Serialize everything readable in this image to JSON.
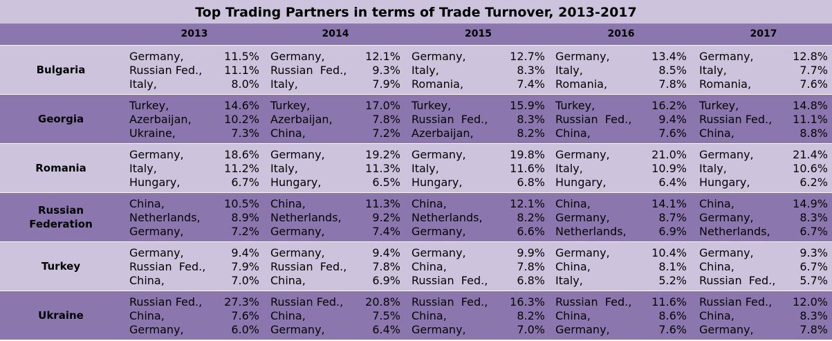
{
  "chart_data": {
    "type": "table",
    "title": "Top Trading Partners in terms of Trade Turnover, 2013-2017",
    "years": [
      "2013",
      "2014",
      "2015",
      "2016",
      "2017"
    ],
    "rows": [
      {
        "country": "Bulgaria",
        "cells": [
          [
            {
              "p": "Germany,",
              "v": "11.5%"
            },
            {
              "p": "Russian Fed.,",
              "v": "11.1%"
            },
            {
              "p": "Italy,",
              "v": "8.0%"
            }
          ],
          [
            {
              "p": "Germany,",
              "v": "12.1%"
            },
            {
              "p": "Russian  Fed.,",
              "v": "9.3%"
            },
            {
              "p": "Italy,",
              "v": "7.9%"
            }
          ],
          [
            {
              "p": "Germany,",
              "v": "12.7%"
            },
            {
              "p": "Italy,",
              "v": "8.3%"
            },
            {
              "p": "Romania,",
              "v": "7.4%"
            }
          ],
          [
            {
              "p": "Germany,",
              "v": "13.4%"
            },
            {
              "p": "Italy,",
              "v": "8.5%"
            },
            {
              "p": "Romania,",
              "v": "7.8%"
            }
          ],
          [
            {
              "p": "Germany,",
              "v": "12.8%"
            },
            {
              "p": "Italy,",
              "v": "7.7%"
            },
            {
              "p": "Romania,",
              "v": "7.6%"
            }
          ]
        ]
      },
      {
        "country": "Georgia",
        "cells": [
          [
            {
              "p": "Turkey,",
              "v": "14.6%"
            },
            {
              "p": "Azerbaijan,",
              "v": "10.2%"
            },
            {
              "p": "Ukraine,",
              "v": "7.3%"
            }
          ],
          [
            {
              "p": "Turkey,",
              "v": "17.0%"
            },
            {
              "p": "Azerbaijan,",
              "v": "7.8%"
            },
            {
              "p": "China,",
              "v": "7.2%"
            }
          ],
          [
            {
              "p": "Turkey,",
              "v": "15.9%"
            },
            {
              "p": "Russian  Fed.,",
              "v": "8.3%"
            },
            {
              "p": "Azerbaijan,",
              "v": "8.2%"
            }
          ],
          [
            {
              "p": "Turkey,",
              "v": "16.2%"
            },
            {
              "p": "Russian  Fed.,",
              "v": "9.4%"
            },
            {
              "p": "China,",
              "v": "7.6%"
            }
          ],
          [
            {
              "p": "Turkey,",
              "v": "14.8%"
            },
            {
              "p": "Russian Fed.,",
              "v": "11.1%"
            },
            {
              "p": "China,",
              "v": "8.8%"
            }
          ]
        ]
      },
      {
        "country": "Romania",
        "cells": [
          [
            {
              "p": "Germany,",
              "v": "18.6%"
            },
            {
              "p": "Italy,",
              "v": "11.2%"
            },
            {
              "p": "Hungary,",
              "v": "6.7%"
            }
          ],
          [
            {
              "p": "Germany,",
              "v": "19.2%"
            },
            {
              "p": "Italy,",
              "v": "11.3%"
            },
            {
              "p": "Hungary,",
              "v": "6.5%"
            }
          ],
          [
            {
              "p": "Germany,",
              "v": "19.8%"
            },
            {
              "p": "Italy,",
              "v": "11.6%"
            },
            {
              "p": "Hungary,",
              "v": "6.8%"
            }
          ],
          [
            {
              "p": "Germany,",
              "v": "21.0%"
            },
            {
              "p": "Italy,",
              "v": "10.9%"
            },
            {
              "p": "Hungary,",
              "v": "6.4%"
            }
          ],
          [
            {
              "p": "Germany,",
              "v": "21.4%"
            },
            {
              "p": "Italy,",
              "v": "10.6%"
            },
            {
              "p": "Hungary,",
              "v": "6.2%"
            }
          ]
        ]
      },
      {
        "country": "Russian Federation",
        "cells": [
          [
            {
              "p": "China,",
              "v": "10.5%"
            },
            {
              "p": "Netherlands,",
              "v": "8.9%"
            },
            {
              "p": "Germany,",
              "v": "7.2%"
            }
          ],
          [
            {
              "p": "China,",
              "v": "11.3%"
            },
            {
              "p": "Netherlands,",
              "v": "9.2%"
            },
            {
              "p": "Germany,",
              "v": "7.4%"
            }
          ],
          [
            {
              "p": "China,",
              "v": "12.1%"
            },
            {
              "p": "Netherlands,",
              "v": "8.2%"
            },
            {
              "p": "Germany,",
              "v": "6.6%"
            }
          ],
          [
            {
              "p": "China,",
              "v": "14.1%"
            },
            {
              "p": "Germany,",
              "v": "8.7%"
            },
            {
              "p": "Netherlands,",
              "v": "6.9%"
            }
          ],
          [
            {
              "p": "China,",
              "v": "14.9%"
            },
            {
              "p": "Germany,",
              "v": "8.3%"
            },
            {
              "p": "Netherlands,",
              "v": "6.7%"
            }
          ]
        ]
      },
      {
        "country": "Turkey",
        "cells": [
          [
            {
              "p": "Germany,",
              "v": "9.4%"
            },
            {
              "p": "Russian  Fed.,",
              "v": "7.9%"
            },
            {
              "p": "China,",
              "v": "7.0%"
            }
          ],
          [
            {
              "p": "Germany,",
              "v": "9.4%"
            },
            {
              "p": "Russian  Fed.,",
              "v": "7.8%"
            },
            {
              "p": "China,",
              "v": "6.9%"
            }
          ],
          [
            {
              "p": "Germany,",
              "v": "9.9%"
            },
            {
              "p": "China,",
              "v": "7.8%"
            },
            {
              "p": "Russian  Fed.,",
              "v": "6.8%"
            }
          ],
          [
            {
              "p": "Germany,",
              "v": "10.4%"
            },
            {
              "p": "China,",
              "v": "8.1%"
            },
            {
              "p": "Italy,",
              "v": "5.2%"
            }
          ],
          [
            {
              "p": "Germany,",
              "v": "9.3%"
            },
            {
              "p": "China,",
              "v": "6.7%"
            },
            {
              "p": "Russian  Fed.,",
              "v": "5.7%"
            }
          ]
        ]
      },
      {
        "country": "Ukraine",
        "cells": [
          [
            {
              "p": "Russian Fed.,",
              "v": "27.3%"
            },
            {
              "p": "China,",
              "v": "7.6%"
            },
            {
              "p": "Germany,",
              "v": "6.0%"
            }
          ],
          [
            {
              "p": "Russian Fed.,",
              "v": "20.8%"
            },
            {
              "p": "China,",
              "v": "7.5%"
            },
            {
              "p": "Germany,",
              "v": "6.4%"
            }
          ],
          [
            {
              "p": "Russian  Fed.,",
              "v": "16.3%"
            },
            {
              "p": "China,",
              "v": "8.2%"
            },
            {
              "p": "Germany,",
              "v": "7.0%"
            }
          ],
          [
            {
              "p": "Russian  Fed.,",
              "v": "11.6%"
            },
            {
              "p": "China,",
              "v": "8.6%"
            },
            {
              "p": "Germany,",
              "v": "7.6%"
            }
          ],
          [
            {
              "p": "Russian Fed.,",
              "v": "12.0%"
            },
            {
              "p": "China,",
              "v": "8.3%"
            },
            {
              "p": "Germany,",
              "v": "7.8%"
            }
          ]
        ]
      }
    ]
  }
}
